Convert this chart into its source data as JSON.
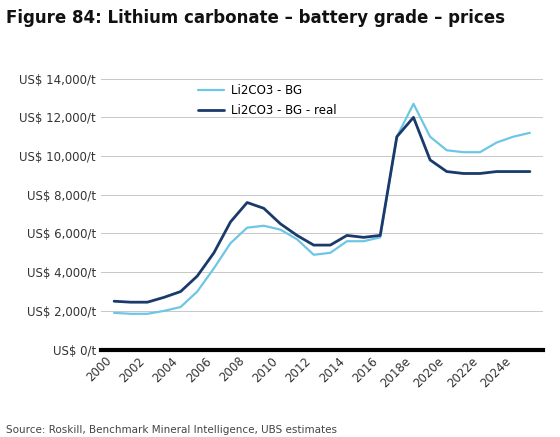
{
  "title": "Figure 84: Lithium carbonate – battery grade – prices",
  "source": "Source: Roskill, Benchmark Mineral Intelligence, UBS estimates",
  "x_values": [
    2000,
    2001,
    2002,
    2003,
    2004,
    2005,
    2006,
    2007,
    2008,
    2009,
    2010,
    2011,
    2012,
    2013,
    2014,
    2015,
    2016,
    2017,
    2018,
    2019,
    2020,
    2021,
    2022,
    2023,
    2024,
    2025
  ],
  "bg_values": [
    1900,
    1850,
    1850,
    2000,
    2200,
    3000,
    4200,
    5500,
    6300,
    6400,
    6200,
    5700,
    4900,
    5000,
    5600,
    5600,
    5800,
    11000,
    12700,
    11000,
    10300,
    10200,
    10200,
    10700,
    11000,
    11200
  ],
  "real_values": [
    2500,
    2450,
    2450,
    2700,
    3000,
    3800,
    5000,
    6600,
    7600,
    7300,
    6500,
    5900,
    5400,
    5400,
    5900,
    5800,
    5900,
    11000,
    12000,
    9800,
    9200,
    9100,
    9100,
    9200,
    9200,
    9200
  ],
  "bg_color": "#6EC6E6",
  "real_color": "#1A3A6B",
  "ylim": [
    0,
    14000
  ],
  "yticks": [
    0,
    2000,
    4000,
    6000,
    8000,
    10000,
    12000,
    14000
  ],
  "bg_label": "Li2CO3 - BG",
  "real_label": "Li2CO3 - BG - real",
  "bg_linewidth": 1.6,
  "real_linewidth": 2.0,
  "title_fontsize": 12,
  "axis_fontsize": 8.5,
  "legend_fontsize": 8.5,
  "source_fontsize": 7.5,
  "background_color": "#FFFFFF",
  "grid_color": "#C8C8C8",
  "x_tick_positions": [
    2000,
    2002,
    2004,
    2006,
    2008,
    2010,
    2012,
    2014,
    2016,
    2018,
    2020,
    2022,
    2024
  ],
  "x_tick_labels": [
    "2000",
    "2002",
    "2004",
    "2006",
    "2008",
    "2010",
    "2012",
    "2014",
    "2016",
    "2018e",
    "2020e",
    "2022e",
    "2024e"
  ]
}
